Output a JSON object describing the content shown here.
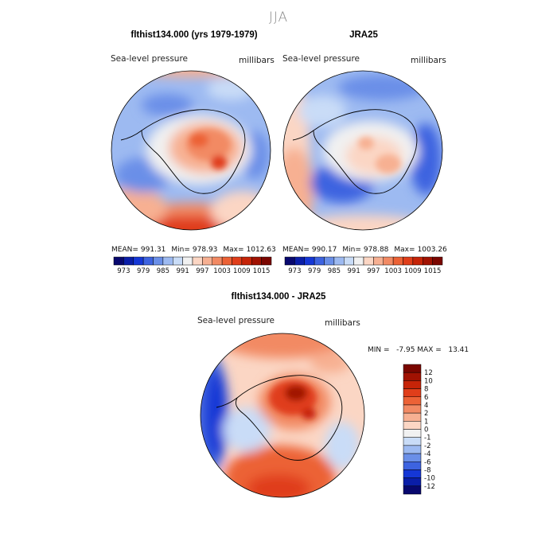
{
  "chart_data": {
    "type": "heatmap",
    "title": "JJA",
    "panels": [
      {
        "id": "model",
        "title": "flthist134.000 (yrs 1979-1979)",
        "left_label": "Sea-level pressure",
        "right_label": "millibars",
        "stats": {
          "mean_label": "MEAN=",
          "mean": "991.31",
          "min_label": "Min=",
          "min": "978.93",
          "max_label": "Max=",
          "max": "1012.63"
        }
      },
      {
        "id": "obs",
        "title": "JRA25",
        "left_label": "Sea-level pressure",
        "right_label": "millibars",
        "stats": {
          "mean_label": "MEAN=",
          "mean": "990.17",
          "min_label": "Min=",
          "min": "978.88",
          "max_label": "Max=",
          "max": "1003.26"
        }
      },
      {
        "id": "diff",
        "title": "flthist134.000 - JRA25",
        "left_label": "Sea-level pressure",
        "right_label": "millibars",
        "stats_text": "MIN =   -7.95 MAX =   13.41"
      }
    ],
    "abs_colorbar": {
      "tick_labels": [
        "973",
        "979",
        "985",
        "991",
        "997",
        "1003",
        "1009",
        "1015"
      ],
      "colors": [
        "#08086e",
        "#0a1ea8",
        "#1537d6",
        "#3d63e0",
        "#6a8fe8",
        "#9dbaf1",
        "#c9dcf7",
        "#f1f1f1",
        "#fbd6c4",
        "#f7b092",
        "#f28a64",
        "#ec6236",
        "#e03e1a",
        "#c62408",
        "#a11202",
        "#7a0600"
      ]
    },
    "diff_colorbar": {
      "tick_labels": [
        "12",
        "10",
        "8",
        "6",
        "4",
        "2",
        "1",
        "0",
        "-1",
        "-2",
        "-4",
        "-6",
        "-8",
        "-10",
        "-12"
      ],
      "colors": [
        "#7a0600",
        "#a11202",
        "#c62408",
        "#e03e1a",
        "#ec6236",
        "#f28a64",
        "#f7b092",
        "#fbd6c4",
        "#f1f1f1",
        "#c9dcf7",
        "#9dbaf1",
        "#6a8fe8",
        "#3d63e0",
        "#1537d6",
        "#0a1ea8",
        "#08086e"
      ]
    }
  }
}
